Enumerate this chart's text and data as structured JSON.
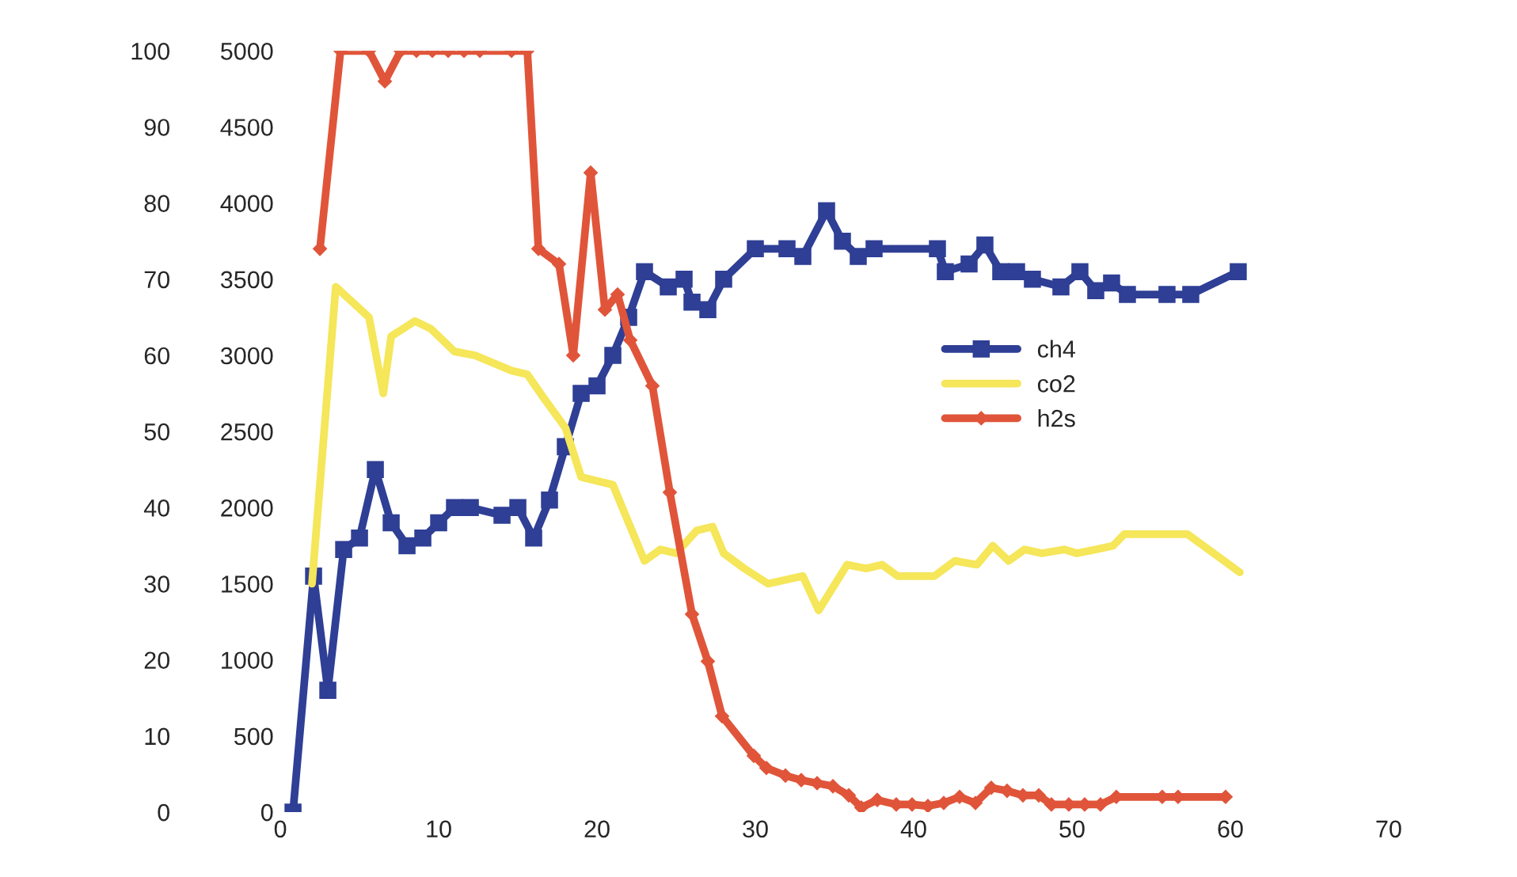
{
  "chart_data": {
    "type": "line",
    "xlim": [
      0,
      70
    ],
    "xticks": [
      0,
      10,
      20,
      30,
      40,
      50,
      60,
      70
    ],
    "ylim": [
      0,
      100
    ],
    "yticks": [
      0,
      10,
      20,
      30,
      40,
      50,
      60,
      70,
      80,
      90,
      100
    ],
    "y2lim": [
      0,
      5000
    ],
    "y2ticks": [
      0,
      500,
      1000,
      1500,
      2000,
      2500,
      3000,
      3500,
      4000,
      4500,
      5000
    ],
    "grid": false,
    "legend": "right",
    "series": [
      {
        "name": "ch4",
        "color": "#2f3f95",
        "marker": "square",
        "x": [
          0.8,
          2.1,
          3,
          4,
          5,
          6,
          7,
          8,
          9,
          10,
          11,
          12,
          14,
          15,
          16,
          17,
          18,
          19,
          20,
          21,
          22,
          23,
          24.5,
          25.5,
          26,
          27,
          28,
          30,
          32,
          33,
          34.5,
          35.5,
          36.5,
          37.5,
          41.5,
          42,
          43.5,
          44.5,
          45.5,
          46.5,
          47.5,
          49.3,
          50.5,
          51.5,
          52.5,
          53.5,
          56,
          57.5,
          60.5
        ],
        "values": [
          0,
          31,
          16,
          34.5,
          36,
          45,
          38,
          35,
          36,
          38,
          40,
          40,
          39,
          40,
          36,
          41,
          48,
          55,
          56,
          60,
          65,
          71,
          69,
          70,
          67,
          66,
          70,
          74,
          74,
          73,
          79,
          75,
          73,
          74,
          74,
          71,
          72,
          74.5,
          71,
          71,
          70,
          69,
          71,
          68.5,
          69.5,
          68,
          68,
          68,
          71
        ]
      },
      {
        "name": "co2",
        "color": "#f5e65a",
        "marker": "none",
        "x": [
          2,
          3.5,
          5.6,
          6.5,
          7,
          8.5,
          9.5,
          11,
          12.3,
          14.6,
          15.6,
          16.6,
          18,
          19,
          21,
          22,
          23,
          24,
          25,
          26.3,
          27.3,
          28,
          29.3,
          30.8,
          33,
          34,
          35.8,
          37,
          38,
          39,
          41.3,
          42.6,
          44,
          45,
          46,
          47,
          48.1,
          49.5,
          50.3,
          51.5,
          52.6,
          53.3,
          57.3,
          60.6
        ],
        "values": [
          30,
          69,
          65,
          55,
          62.5,
          64.5,
          63.5,
          60.5,
          60,
          58,
          57.5,
          54.5,
          50.5,
          44,
          43,
          38,
          33,
          34.5,
          34,
          37,
          37.5,
          34,
          32,
          30,
          31,
          26.5,
          32.5,
          32,
          32.5,
          31,
          31,
          33,
          32.5,
          35,
          33,
          34.5,
          34,
          34.5,
          34,
          34.5,
          35,
          36.5,
          36.5,
          31.5
        ]
      },
      {
        "name": "h2s",
        "color": "#e0553a",
        "marker": "diamond",
        "axis": "y2",
        "x": [
          2.5,
          3.8,
          5.6,
          6.6,
          7.6,
          8.6,
          9.6,
          10.6,
          11.6,
          12.6,
          14.6,
          15.6,
          16.3,
          17.6,
          18.5,
          19.6,
          20.5,
          21.3,
          22.1,
          23.5,
          24.6,
          26,
          27,
          27.9,
          29.9,
          30.7,
          31.9,
          32.9,
          33.9,
          34.9,
          35.9,
          36.7,
          37.7,
          38.9,
          39.9,
          40.9,
          41.9,
          42.9,
          43.9,
          44.9,
          45.9,
          46.9,
          47.9,
          48.7,
          49.8,
          50.8,
          51.8,
          52.8,
          55.7,
          56.7,
          59.7
        ],
        "values": [
          3700,
          5000,
          5000,
          4800,
          5000,
          5000,
          5000,
          5000,
          5000,
          5000,
          5000,
          5000,
          3700,
          3600,
          3000,
          4200,
          3300,
          3400,
          3100,
          2800,
          2100,
          1300,
          990,
          630,
          370,
          290,
          240,
          210,
          190,
          170,
          110,
          30,
          80,
          50,
          50,
          40,
          60,
          100,
          60,
          160,
          140,
          110,
          110,
          50,
          50,
          50,
          50,
          100,
          100,
          100,
          100
        ]
      }
    ]
  }
}
